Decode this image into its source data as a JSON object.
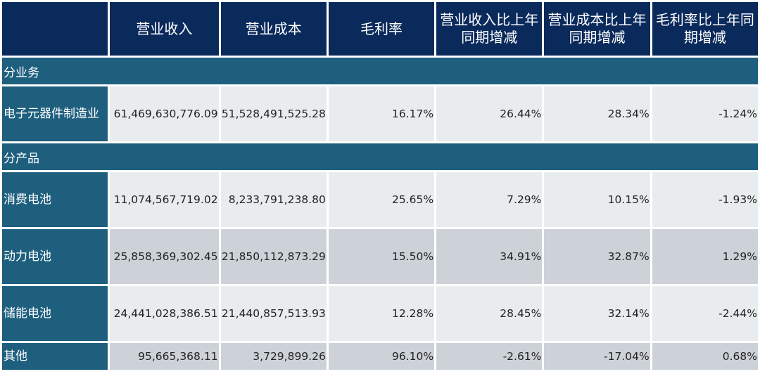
{
  "headers": [
    "营业收入",
    "营业成本",
    "毛利率",
    "营业收入比上年同期增减",
    "营业成本比上年同期增减",
    "毛利率比上年同期增减"
  ],
  "sections": {
    "business": "分业务",
    "product": "分产品"
  },
  "rows": [
    {
      "label": "电子元器件制造业",
      "values": [
        "61,469,630,776.09",
        "51,528,491,525.28",
        "16.17%",
        "26.44%",
        "28.34%",
        "-1.24%"
      ]
    },
    {
      "label": "消费电池",
      "values": [
        "11,074,567,719.02",
        "8,233,791,238.80",
        "25.65%",
        "7.29%",
        "10.15%",
        "-1.93%"
      ]
    },
    {
      "label": "动力电池",
      "values": [
        "25,858,369,302.45",
        "21,850,112,873.29",
        "15.50%",
        "34.91%",
        "32.87%",
        "1.29%"
      ]
    },
    {
      "label": "储能电池",
      "values": [
        "24,441,028,386.51",
        "21,440,857,513.93",
        "12.28%",
        "28.45%",
        "32.14%",
        "-2.44%"
      ]
    },
    {
      "label": "其他",
      "values": [
        "95,665,368.11",
        "3,729,899.26",
        "96.10%",
        "-2.61%",
        "-17.04%",
        "0.68%"
      ]
    }
  ],
  "colors": {
    "header": "#0b2a5c",
    "label": "#1e5f7e",
    "row_light": "#e8ecef",
    "row_gray": "#cdd2d9"
  }
}
